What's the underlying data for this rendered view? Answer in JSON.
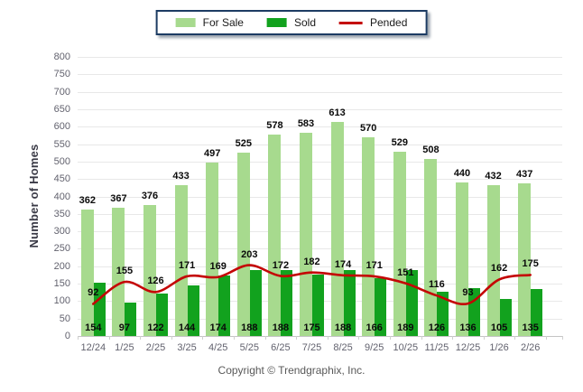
{
  "chart_data": {
    "type": "bar",
    "title": "",
    "xlabel": "",
    "ylabel": "Number of Homes",
    "ylim": [
      0,
      800
    ],
    "ytick_step": 50,
    "grid": true,
    "legend_position": "top",
    "categories": [
      "12/24",
      "1/25",
      "2/25",
      "3/25",
      "4/25",
      "5/25",
      "6/25",
      "7/25",
      "8/25",
      "9/25",
      "10/25",
      "11/25",
      "12/25",
      "1/26",
      "2/26"
    ],
    "series": [
      {
        "name": "For Sale",
        "type": "bar",
        "color": "#A7DA8E",
        "values": [
          362,
          367,
          376,
          433,
          497,
          525,
          578,
          583,
          613,
          570,
          529,
          508,
          440,
          432,
          437
        ]
      },
      {
        "name": "Sold",
        "type": "bar",
        "color": "#12A21E",
        "values": [
          154,
          97,
          122,
          144,
          174,
          188,
          188,
          175,
          188,
          166,
          189,
          126,
          136,
          105,
          135
        ]
      },
      {
        "name": "Pended",
        "type": "line",
        "color": "#C40505",
        "values": [
          92,
          155,
          126,
          171,
          169,
          203,
          172,
          182,
          174,
          171,
          151,
          116,
          93,
          162,
          175
        ]
      }
    ]
  },
  "footer": {
    "copyright": "Copyright © Trendgraphix, Inc."
  }
}
